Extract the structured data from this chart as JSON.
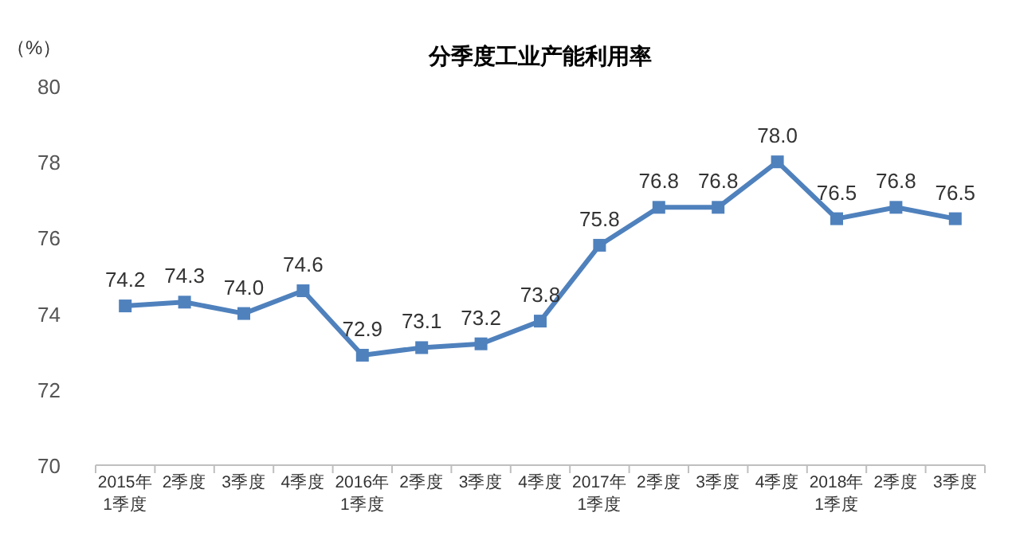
{
  "chart_data": {
    "type": "line",
    "title": "分季度工业产能利用率",
    "ylabel": "（%）",
    "categories": [
      "2015年\n1季度",
      "2季度",
      "3季度",
      "4季度",
      "2016年\n1季度",
      "2季度",
      "3季度",
      "4季度",
      "2017年\n1季度",
      "2季度",
      "3季度",
      "4季度",
      "2018年\n1季度",
      "2季度",
      "3季度"
    ],
    "series": [
      {
        "color": "#4f81bd",
        "values": [
          74.2,
          74.3,
          74.0,
          74.6,
          72.9,
          73.1,
          73.2,
          73.8,
          75.8,
          76.8,
          76.8,
          78.0,
          76.5,
          76.8,
          76.5
        ],
        "value_labels": [
          "74.2",
          "74.3",
          "74.0",
          "74.6",
          "72.9",
          "73.1",
          "73.2",
          "73.8",
          "75.8",
          "76.8",
          "76.8",
          "78.0",
          "76.5",
          "76.8",
          "76.5"
        ]
      }
    ],
    "ylim": [
      70,
      80
    ],
    "yticks": [
      70,
      72,
      74,
      76,
      78,
      80
    ],
    "grid": false,
    "marker": "square",
    "line_style": "solid"
  }
}
